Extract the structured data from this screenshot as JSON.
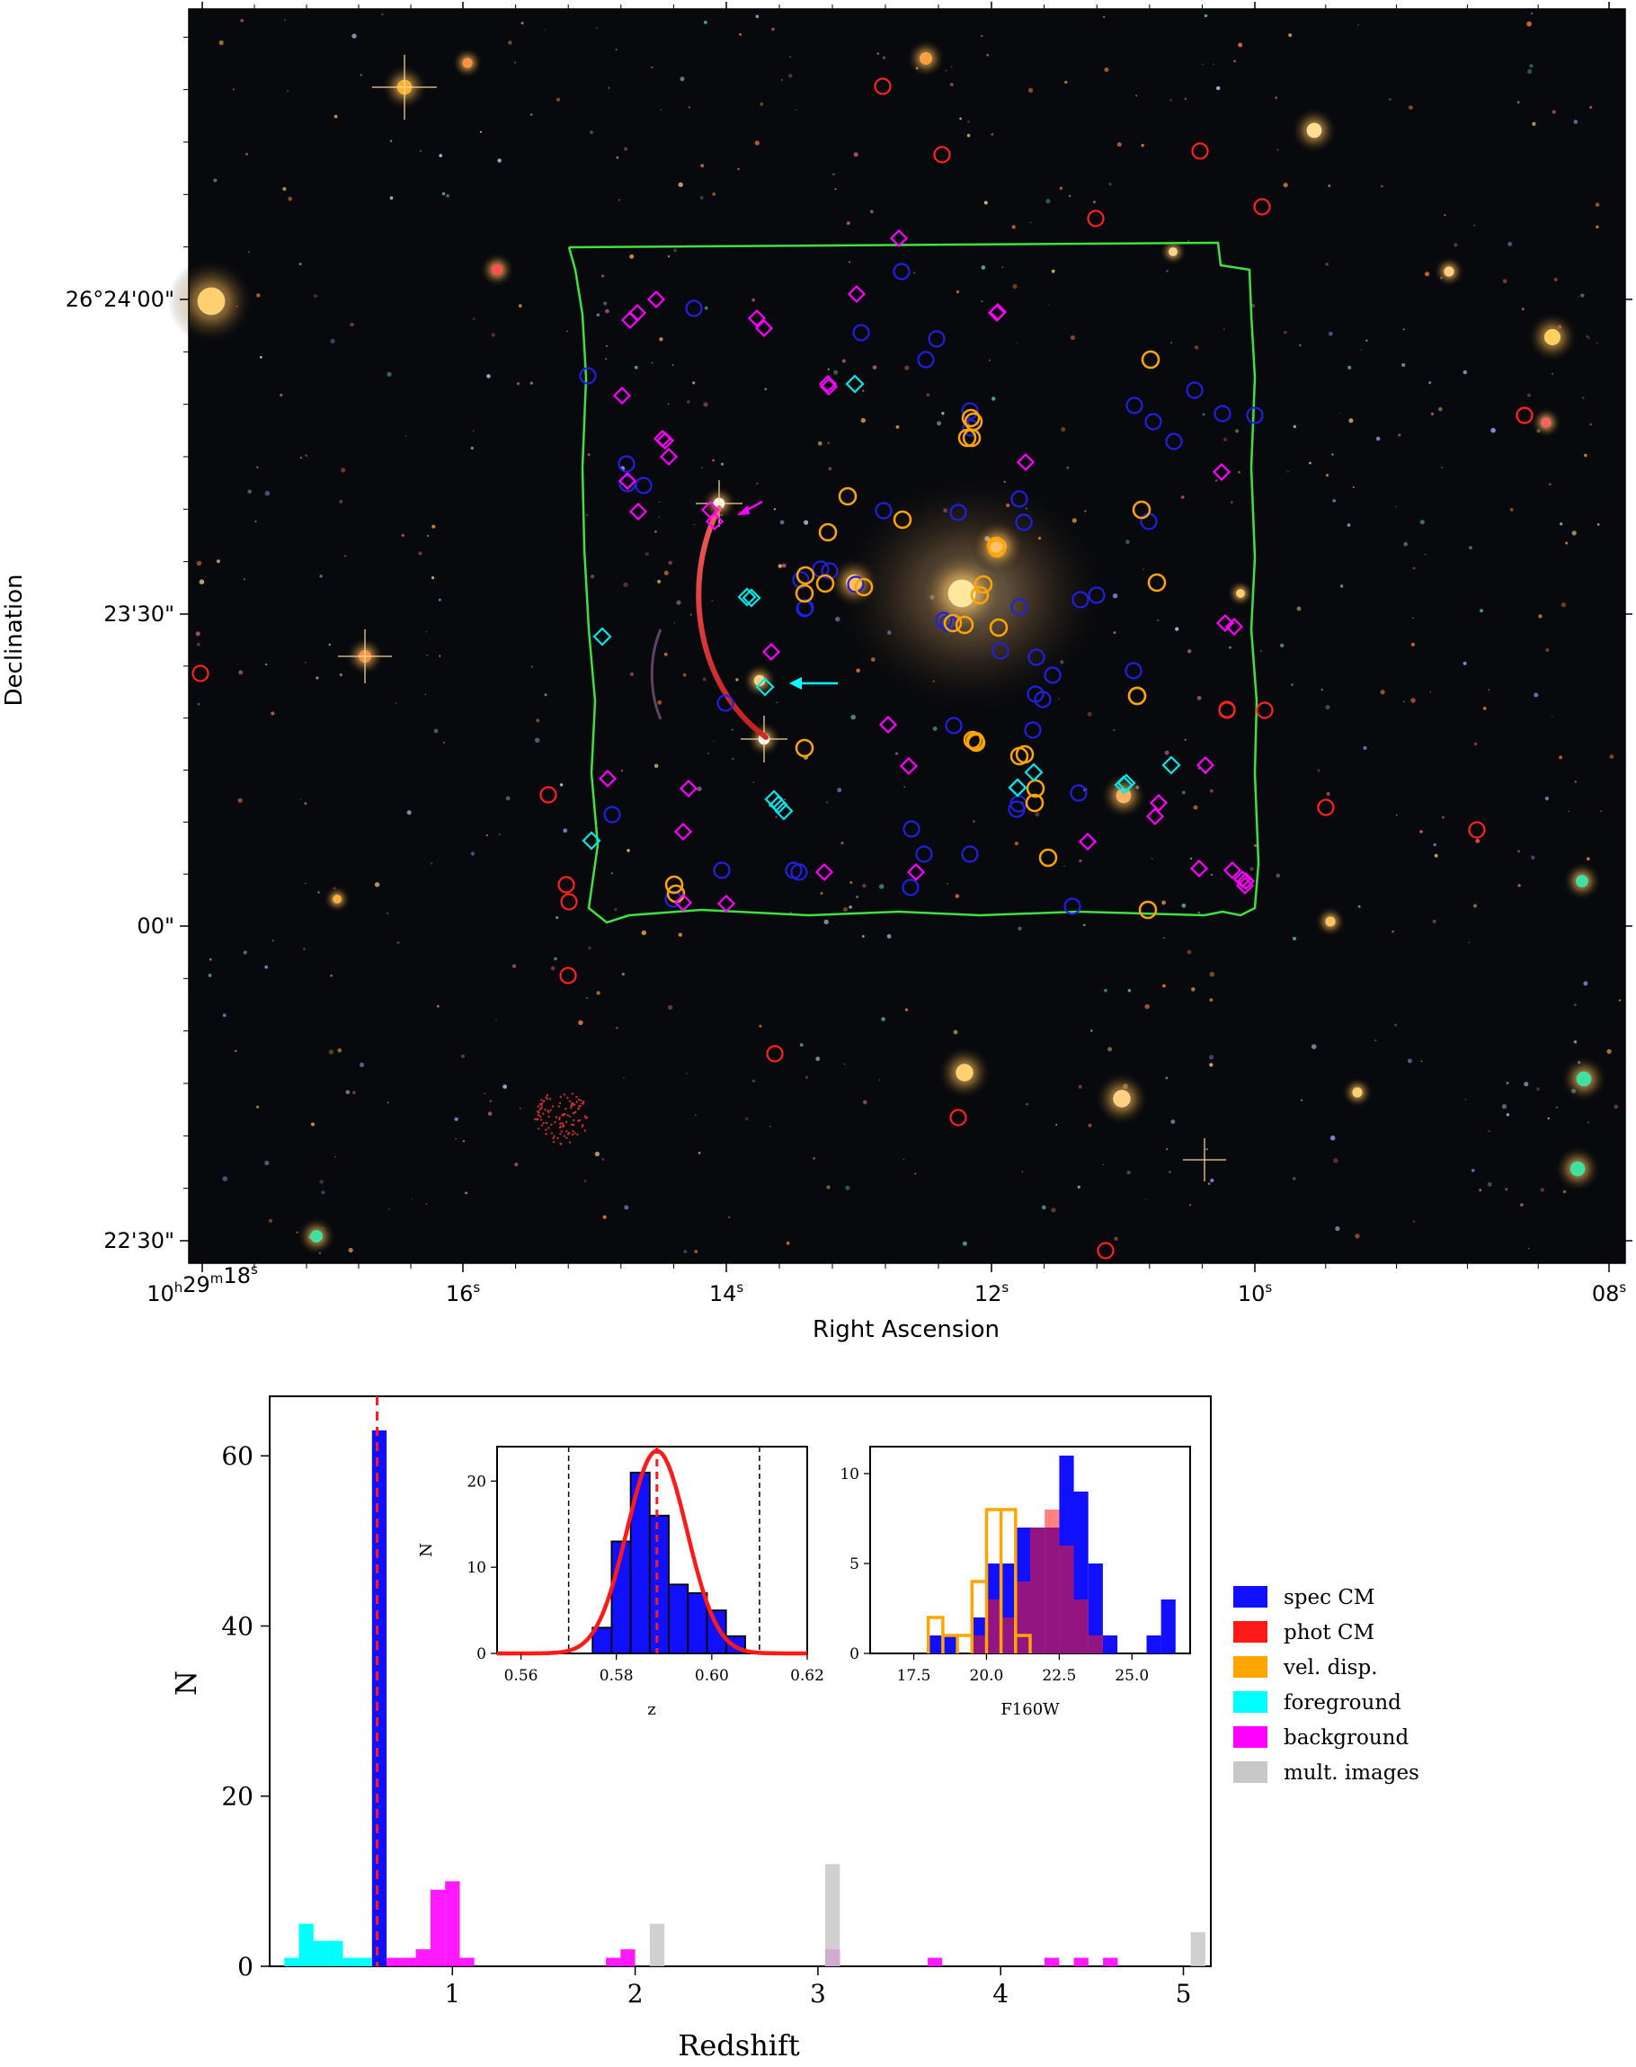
{
  "colors": {
    "spec_cm": "#1010ff",
    "phot_cm": "#ff1a1a",
    "vel_disp": "#ffa500",
    "foreground": "#00ffff",
    "background": "#ff00ff",
    "mult_images": "#c8c8c8",
    "muse_outline": "#40e040",
    "fit_curve": "#ff1a1a"
  },
  "sky_image": {
    "xlabel": "Right Ascension",
    "ylabel": "Declination",
    "ra_ticks": [
      {
        "main": "10",
        "sup1": "h",
        "mid": "29",
        "sup2": "m",
        "end": "18",
        "sup3": "s"
      },
      {
        "main": "16",
        "sup1": "s"
      },
      {
        "main": "14",
        "sup1": "s"
      },
      {
        "main": "12",
        "sup1": "s"
      },
      {
        "main": "10",
        "sup1": "s"
      },
      {
        "main": "08",
        "sup1": "s"
      }
    ],
    "dec_ticks": [
      "26°24'00\"",
      "23'30\"",
      "00\"",
      "22'30\""
    ],
    "marker_legend": {
      "spec_cm": "blue circle",
      "vel_disp": "orange circle",
      "phot_cm": "red circle",
      "foreground": "cyan diamond",
      "background": "magenta diamond"
    }
  },
  "chart_data": [
    {
      "type": "bar",
      "title": "",
      "xlabel": "Redshift",
      "ylabel": "N",
      "xlim": [
        0.0,
        5.15
      ],
      "ylim": [
        0,
        67
      ],
      "xticks": [
        1,
        2,
        3,
        4,
        5
      ],
      "yticks": [
        0,
        20,
        40,
        60
      ],
      "bin_width": 0.08,
      "cluster_redshift_line": 0.588,
      "series": [
        {
          "name": "spec CM",
          "color_key": "spec_cm",
          "bins": [
            [
              0.56,
              63
            ]
          ]
        },
        {
          "name": "phot CM",
          "color_key": "phot_cm",
          "bins": []
        },
        {
          "name": "vel. disp.",
          "color_key": "vel_disp",
          "bins": []
        },
        {
          "name": "foreground",
          "color_key": "foreground",
          "bins": [
            [
              0.08,
              1
            ],
            [
              0.16,
              5
            ],
            [
              0.24,
              3
            ],
            [
              0.32,
              3
            ],
            [
              0.4,
              1
            ],
            [
              0.48,
              1
            ]
          ]
        },
        {
          "name": "background",
          "color_key": "background",
          "bins": [
            [
              0.64,
              1
            ],
            [
              0.72,
              1
            ],
            [
              0.8,
              2
            ],
            [
              0.88,
              9
            ],
            [
              0.96,
              10
            ],
            [
              1.04,
              1
            ],
            [
              1.84,
              1
            ],
            [
              1.92,
              2
            ],
            [
              3.04,
              2
            ],
            [
              3.6,
              1
            ],
            [
              4.24,
              1
            ],
            [
              4.4,
              1
            ],
            [
              4.56,
              1
            ]
          ]
        },
        {
          "name": "mult. images",
          "color_key": "mult_images",
          "bins": [
            [
              2.08,
              5
            ],
            [
              3.04,
              12
            ],
            [
              5.04,
              4
            ]
          ]
        }
      ],
      "legend": [
        "spec CM",
        "phot CM",
        "vel. disp.",
        "foreground",
        "background",
        "mult. images"
      ],
      "legend_position": "outside right"
    },
    {
      "type": "bar",
      "title": "",
      "xlabel": "z",
      "ylabel": "N",
      "xlim": [
        0.555,
        0.62
      ],
      "ylim": [
        0,
        24
      ],
      "xticks": [
        "0.56",
        "0.58",
        "0.60",
        "0.62"
      ],
      "yticks": [
        "0",
        "10",
        "20"
      ],
      "bin_edges": [
        0.575,
        0.579,
        0.583,
        0.587,
        0.591,
        0.595,
        0.599,
        0.603,
        0.607
      ],
      "values": [
        3,
        13,
        21,
        16,
        8,
        7,
        5,
        2
      ],
      "gaussian_fit": {
        "mu": 0.5885,
        "sigma": 0.0063,
        "peak": 23.5
      },
      "dashed_lines": [
        0.57,
        0.61
      ],
      "center_line": 0.5885
    },
    {
      "type": "bar",
      "title": "",
      "xlabel": "F160W",
      "ylabel": "",
      "xlim": [
        16.0,
        27.0
      ],
      "ylim": [
        0,
        11.5
      ],
      "xticks": [
        "17.5",
        "20.0",
        "22.5",
        "25.0"
      ],
      "yticks": [
        "0",
        "5",
        "10"
      ],
      "bin_width": 0.5,
      "series": [
        {
          "name": "spec CM",
          "bins": [
            [
              18.0,
              1
            ],
            [
              18.5,
              1
            ],
            [
              19.5,
              2
            ],
            [
              20.0,
              5
            ],
            [
              20.5,
              5
            ],
            [
              21.0,
              7
            ],
            [
              21.5,
              7
            ],
            [
              22.0,
              7
            ],
            [
              22.5,
              11
            ],
            [
              23.0,
              9
            ],
            [
              23.5,
              5
            ],
            [
              24.0,
              1
            ],
            [
              25.5,
              1
            ],
            [
              26.0,
              3
            ]
          ]
        },
        {
          "name": "phot CM",
          "bins": [
            [
              19.5,
              1
            ],
            [
              20.0,
              3
            ],
            [
              20.5,
              2
            ],
            [
              21.0,
              4
            ],
            [
              21.5,
              7
            ],
            [
              22.0,
              8
            ],
            [
              22.5,
              6
            ],
            [
              23.0,
              3
            ],
            [
              23.5,
              1
            ]
          ]
        },
        {
          "name": "vel. disp.",
          "bins": [
            [
              18.0,
              2
            ],
            [
              18.5,
              1
            ],
            [
              19.0,
              1
            ],
            [
              19.5,
              4
            ],
            [
              20.0,
              8
            ],
            [
              20.5,
              8
            ],
            [
              21.0,
              1
            ]
          ]
        }
      ]
    }
  ]
}
